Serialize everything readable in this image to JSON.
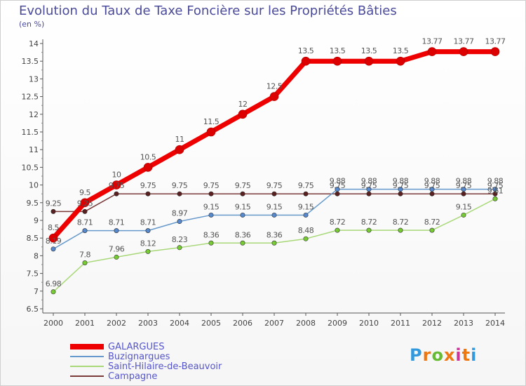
{
  "header": {
    "title": "Evolution du Taux de Taxe Foncière sur les Propriétés Bâties",
    "unit": "(en %)"
  },
  "logo": {
    "letters": [
      "P",
      "r",
      "o",
      "x",
      "i",
      "t",
      "i"
    ],
    "colors": [
      "#3399dd",
      "#ee7711",
      "#66bb33",
      "#ee7711",
      "#cc3399",
      "#ee7711",
      "#3399dd"
    ]
  },
  "chart_data": {
    "type": "line",
    "title": "Evolution du Taux de Taxe Foncière sur les Propriétés Bâties",
    "ylabel": "(en %)",
    "xlabel": "",
    "x": [
      "2000",
      "2001",
      "2002",
      "2003",
      "2004",
      "2005",
      "2006",
      "2007",
      "2008",
      "2009",
      "2010",
      "2011",
      "2012",
      "2013",
      "2014"
    ],
    "ylim": [
      6.5,
      14
    ],
    "yticks": [
      "6.5",
      "7",
      "7.5",
      "8",
      "8.5",
      "9",
      "9.5",
      "10",
      "10.5",
      "11",
      "11.5",
      "12",
      "12.5",
      "13",
      "13.5",
      "14"
    ],
    "grid": false,
    "legend_position": "bottom-left",
    "series": [
      {
        "name": "Campagne",
        "color": "#7a3a3a",
        "marker": "#5a1f1f",
        "width": 1.5,
        "values": [
          9.25,
          9.25,
          9.75,
          9.75,
          9.75,
          9.75,
          9.75,
          9.75,
          9.75,
          9.75,
          9.75,
          9.75,
          9.75,
          9.75,
          9.75
        ],
        "labels": [
          "9.25",
          "9.25",
          "9.75",
          "9.75",
          "9.75",
          "9.75",
          "9.75",
          "9.75",
          "9.75",
          "9.75",
          "9.75",
          "9.75",
          "9.75",
          "9.75",
          "9.75"
        ]
      },
      {
        "name": "Saint-Hilaire-de-Beauvoir",
        "color": "#a8d878",
        "marker": "#77cc33",
        "width": 1.5,
        "values": [
          6.98,
          7.8,
          7.96,
          8.12,
          8.23,
          8.36,
          8.36,
          8.36,
          8.48,
          8.72,
          8.72,
          8.72,
          8.72,
          9.15,
          9.61
        ],
        "labels": [
          "6.98",
          "7.8",
          "7.96",
          "8.12",
          "8.23",
          "8.36",
          "8.36",
          "8.36",
          "8.48",
          "8.72",
          "8.72",
          "8.72",
          "8.72",
          "9.15",
          "9.61"
        ]
      },
      {
        "name": "Buzignargues",
        "color": "#6699cc",
        "marker": "#5588cc",
        "width": 1.5,
        "values": [
          8.19,
          8.71,
          8.71,
          8.71,
          8.97,
          9.15,
          9.15,
          9.15,
          9.15,
          9.88,
          9.88,
          9.88,
          9.88,
          9.88,
          9.88
        ],
        "labels": [
          "8.19",
          "8.71",
          "8.71",
          "8.71",
          "8.97",
          "9.15",
          "9.15",
          "9.15",
          "9.15",
          "9.88",
          "9.88",
          "9.88",
          "9.88",
          "9.88",
          "9.88"
        ]
      },
      {
        "name": "GALARGUES",
        "color": "#ee0000",
        "marker": "#dd0000",
        "width": 7,
        "values": [
          8.5,
          9.5,
          10,
          10.5,
          11,
          11.5,
          12,
          12.5,
          13.5,
          13.5,
          13.5,
          13.5,
          13.77,
          13.77,
          13.77
        ],
        "labels": [
          "8.5",
          "9.5",
          "10",
          "10.5",
          "11",
          "11.5",
          "12",
          "12.5",
          "13.5",
          "13.5",
          "13.5",
          "13.5",
          "13.77",
          "13.77",
          "13.77"
        ]
      }
    ]
  }
}
